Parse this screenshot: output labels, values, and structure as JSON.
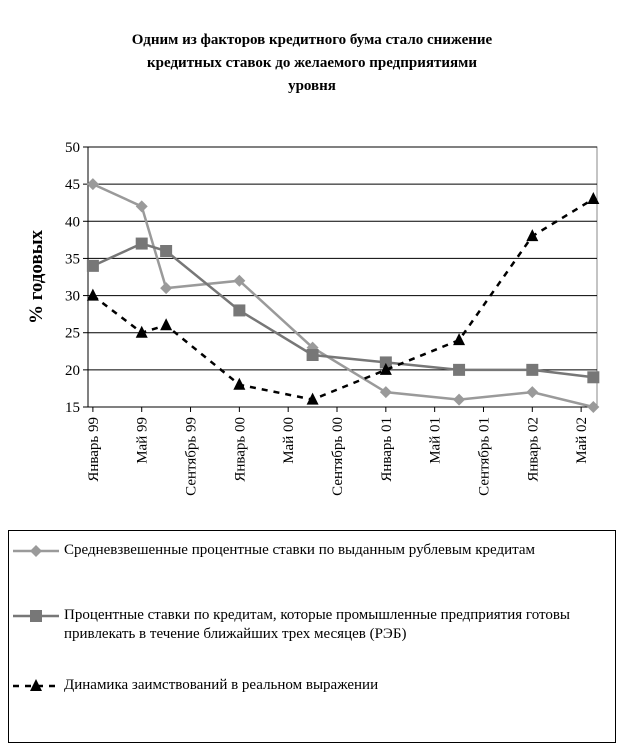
{
  "chart_data": {
    "type": "line",
    "title": [
      "Одним из факторов кредитного бума стало снижение",
      "кредитных ставок до желаемого предприятиями",
      "уровня"
    ],
    "y_label": "% годовых",
    "xlim": [
      -0.4,
      41.3
    ],
    "xticks": [
      {
        "value": 0,
        "label": "Январь 99"
      },
      {
        "value": 4,
        "label": "Май 99"
      },
      {
        "value": 8,
        "label": "Сентябрь 99"
      },
      {
        "value": 12,
        "label": "Январь 00"
      },
      {
        "value": 16,
        "label": "Май 00"
      },
      {
        "value": 20,
        "label": "Сентябрь 00"
      },
      {
        "value": 24,
        "label": "Январь 01"
      },
      {
        "value": 28,
        "label": "Май 01"
      },
      {
        "value": 32,
        "label": "Сентябрь 01"
      },
      {
        "value": 36,
        "label": "Январь 02"
      },
      {
        "value": 40,
        "label": "Май 02"
      }
    ],
    "ylim": [
      15,
      50
    ],
    "yticks": [
      15,
      20,
      25,
      30,
      35,
      40,
      45,
      50
    ],
    "grid": true,
    "series": [
      {
        "name": "Средневзвешенные процентные ставки по выданным рублевым кредитам",
        "color": "#9a9a9a",
        "marker": "diamond",
        "dashed": false,
        "x": [
          0,
          4,
          6,
          12,
          18,
          24,
          30,
          36,
          41
        ],
        "values": [
          45,
          42,
          31,
          32,
          23,
          17,
          16,
          17,
          15
        ]
      },
      {
        "name": "Процентные ставки по кредитам, которые промышленные предприятия готовы привлекать в течение ближайших трех месяцев (РЭБ)",
        "color": "#777777",
        "marker": "square",
        "dashed": false,
        "x": [
          0,
          4,
          6,
          12,
          18,
          24,
          30,
          36,
          41
        ],
        "values": [
          34,
          37,
          36,
          28,
          22,
          21,
          20,
          20,
          19
        ]
      },
      {
        "name": "Динамика заимствований в реальном выражении",
        "color": "#000000",
        "marker": "triangle",
        "dashed": true,
        "x": [
          0,
          4,
          6,
          12,
          18,
          24,
          30,
          36,
          41
        ],
        "values": [
          30,
          25,
          26,
          18,
          16,
          20,
          24,
          38,
          43
        ]
      }
    ]
  }
}
